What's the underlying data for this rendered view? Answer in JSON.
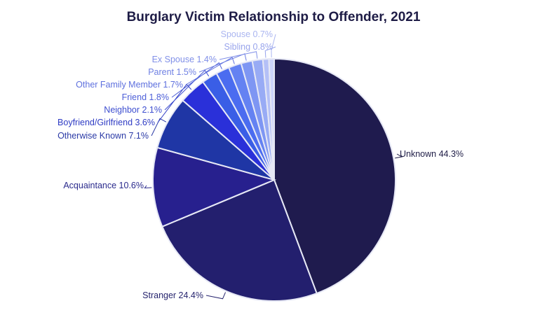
{
  "chart_data": {
    "type": "pie",
    "title": "Burglary Victim Relationship to Offender, 2021",
    "slices": [
      {
        "label": "Unknown",
        "value": 44.3,
        "display": "44.3%",
        "color": "#1f1b4e"
      },
      {
        "label": "Stranger",
        "value": 24.4,
        "display": "24.4%",
        "color": "#231f6e"
      },
      {
        "label": "Acquaintance",
        "value": 10.6,
        "display": "10.6%",
        "color": "#27208e"
      },
      {
        "label": "Otherwise Known",
        "value": 7.1,
        "display": "7.1%",
        "color": "#1f36a5"
      },
      {
        "label": "Boyfriend/Girlfriend",
        "value": 3.6,
        "display": "3.6%",
        "color": "#2a30d9"
      },
      {
        "label": "Neighbor",
        "value": 2.1,
        "display": "2.1%",
        "color": "#3a5ee6"
      },
      {
        "label": "Friend",
        "value": 1.8,
        "display": "1.8%",
        "color": "#4b6cf0"
      },
      {
        "label": "Other Family Member",
        "value": 1.7,
        "display": "1.7%",
        "color": "#6482f2"
      },
      {
        "label": "Parent",
        "value": 1.5,
        "display": "1.5%",
        "color": "#7e96f3"
      },
      {
        "label": "Ex Spouse",
        "value": 1.4,
        "display": "1.4%",
        "color": "#98abf5"
      },
      {
        "label": "Sibling",
        "value": 0.8,
        "display": "0.8%",
        "color": "#b4c0f7"
      },
      {
        "label": "Spouse",
        "value": 0.7,
        "display": "0.7%",
        "color": "#ccd4fa"
      }
    ],
    "label_colors": [
      "#1e1c46",
      "#26246e",
      "#2a2a8c",
      "#2b3aa6",
      "#2e3bc4",
      "#3e4fd0",
      "#4d5fd8",
      "#5e70de",
      "#6f80e3",
      "#8190e8",
      "#98a4ec",
      "#aab5f0"
    ]
  }
}
